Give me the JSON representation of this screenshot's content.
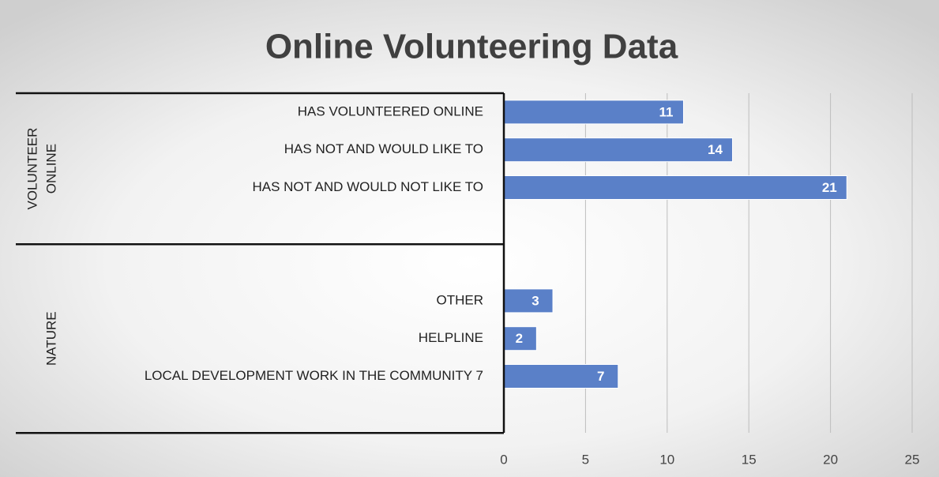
{
  "chart_data": {
    "type": "bar",
    "orientation": "horizontal",
    "title": "Online Volunteering Data",
    "groups": [
      {
        "label": [
          "VOLUNTEER",
          "ONLINE"
        ],
        "categories": [
          "HAS VOLUNTEERED ONLINE",
          "HAS NOT AND WOULD LIKE TO",
          "HAS NOT AND WOULD NOT LIKE TO",
          null
        ],
        "values": [
          11,
          14,
          21,
          null
        ]
      },
      {
        "label": [
          "NATURE"
        ],
        "categories": [
          null,
          "OTHER",
          "HELPLINE",
          "LOCAL DEVELOPMENT WORK IN THE COMMUNITY 7",
          null
        ],
        "values": [
          null,
          3,
          2,
          7,
          null
        ]
      }
    ],
    "color": "#5a80c8",
    "xlim": [
      0,
      25
    ],
    "xticks": [
      0,
      5,
      10,
      15,
      20,
      25
    ],
    "grid": true
  }
}
